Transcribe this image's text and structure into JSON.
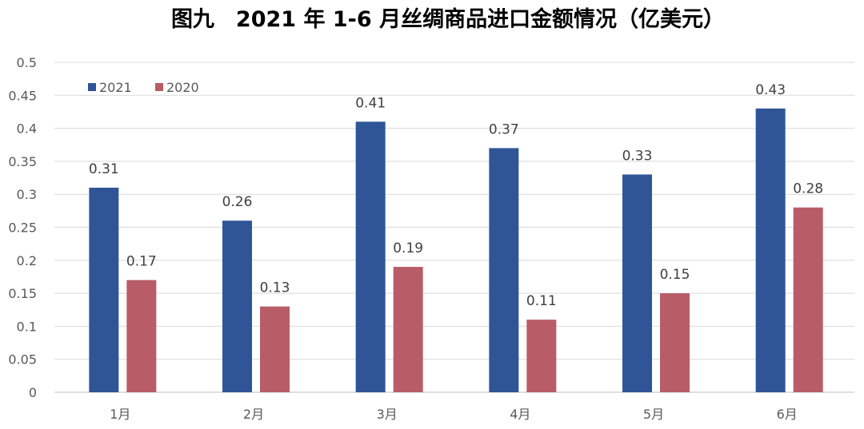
{
  "chart_data": {
    "type": "bar",
    "title": "图九　2021 年 1-6 月丝绸商品进口金额情况（亿美元）",
    "xlabel": "",
    "ylabel": "",
    "categories": [
      "1月",
      "2月",
      "3月",
      "4月",
      "5月",
      "6月"
    ],
    "series": [
      {
        "name": "2021",
        "color": "#2f5597",
        "values": [
          0.31,
          0.26,
          0.41,
          0.37,
          0.33,
          0.43
        ]
      },
      {
        "name": "2020",
        "color": "#b85c68",
        "values": [
          0.17,
          0.13,
          0.19,
          0.11,
          0.15,
          0.28
        ]
      }
    ],
    "ylim": [
      0,
      0.5
    ],
    "yticks": [
      "0",
      "0.05",
      "0.1",
      "0.15",
      "0.2",
      "0.25",
      "0.3",
      "0.35",
      "0.4",
      "0.45",
      "0.5"
    ],
    "grid": true,
    "legend_position": "top-left"
  }
}
